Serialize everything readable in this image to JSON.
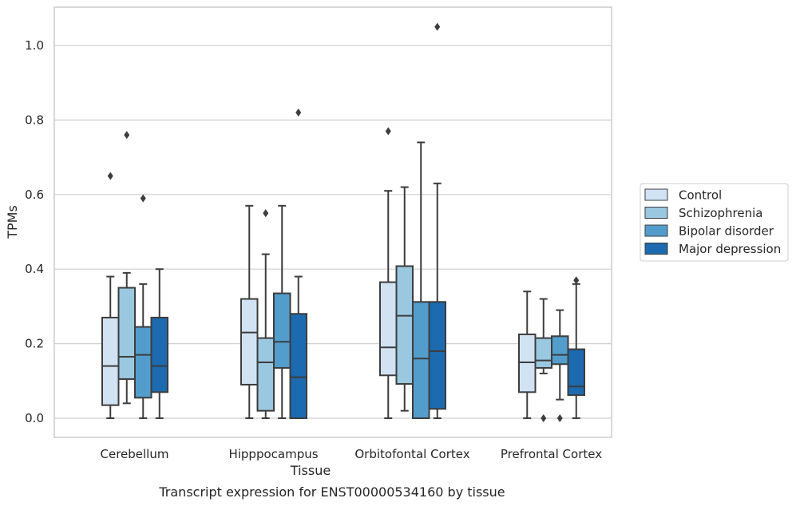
{
  "chart_data": {
    "type": "box",
    "title": "Transcript expression for ENST00000534160 by tissue",
    "xlabel": "Tissue",
    "ylabel": "TPMs",
    "ylim": [
      -0.05,
      1.1
    ],
    "yticks": [
      "0.0",
      "0.2",
      "0.4",
      "0.6",
      "0.8",
      "1.0"
    ],
    "grid": true,
    "legend_position": "right",
    "categories": [
      "Cerebellum",
      "Hipppocampus",
      "Orbitofontal Cortex",
      "Prefrontal Cortex"
    ],
    "series": [
      {
        "name": "Control",
        "color": "#d1e2f3",
        "boxes": [
          {
            "min": 0.0,
            "q1": 0.035,
            "median": 0.14,
            "q3": 0.27,
            "max": 0.38,
            "outliers": [
              0.65
            ]
          },
          {
            "min": 0.0,
            "q1": 0.09,
            "median": 0.23,
            "q3": 0.32,
            "max": 0.57,
            "outliers": []
          },
          {
            "min": 0.0,
            "q1": 0.115,
            "median": 0.19,
            "q3": 0.365,
            "max": 0.61,
            "outliers": [
              0.77
            ]
          },
          {
            "min": 0.0,
            "q1": 0.07,
            "median": 0.15,
            "q3": 0.225,
            "max": 0.34,
            "outliers": []
          }
        ]
      },
      {
        "name": "Schizophrenia",
        "color": "#9ac8e0",
        "boxes": [
          {
            "min": 0.04,
            "q1": 0.105,
            "median": 0.165,
            "q3": 0.35,
            "max": 0.39,
            "outliers": [
              0.76
            ]
          },
          {
            "min": 0.0,
            "q1": 0.02,
            "median": 0.15,
            "q3": 0.215,
            "max": 0.44,
            "outliers": [
              0.55
            ]
          },
          {
            "min": 0.02,
            "q1": 0.092,
            "median": 0.275,
            "q3": 0.408,
            "max": 0.62,
            "outliers": []
          },
          {
            "min": 0.12,
            "q1": 0.135,
            "median": 0.155,
            "q3": 0.215,
            "max": 0.32,
            "outliers": [
              0.0
            ]
          }
        ]
      },
      {
        "name": "Bipolar disorder",
        "color": "#529dcc",
        "boxes": [
          {
            "min": 0.0,
            "q1": 0.055,
            "median": 0.17,
            "q3": 0.245,
            "max": 0.36,
            "outliers": [
              0.59
            ]
          },
          {
            "min": 0.0,
            "q1": 0.135,
            "median": 0.205,
            "q3": 0.335,
            "max": 0.57,
            "outliers": []
          },
          {
            "min": 0.0,
            "q1": 0.0,
            "median": 0.16,
            "q3": 0.312,
            "max": 0.74,
            "outliers": []
          },
          {
            "min": 0.05,
            "q1": 0.145,
            "median": 0.17,
            "q3": 0.22,
            "max": 0.29,
            "outliers": [
              0.0
            ]
          }
        ]
      },
      {
        "name": "Major depression",
        "color": "#1c6aaf",
        "boxes": [
          {
            "min": 0.0,
            "q1": 0.07,
            "median": 0.14,
            "q3": 0.27,
            "max": 0.4,
            "outliers": []
          },
          {
            "min": 0.0,
            "q1": 0.0,
            "median": 0.11,
            "q3": 0.28,
            "max": 0.38,
            "outliers": [
              0.82
            ]
          },
          {
            "min": 0.0,
            "q1": 0.025,
            "median": 0.18,
            "q3": 0.312,
            "max": 0.63,
            "outliers": [
              1.05
            ]
          },
          {
            "min": 0.0,
            "q1": 0.062,
            "median": 0.085,
            "q3": 0.185,
            "max": 0.36,
            "outliers": [
              0.37
            ]
          }
        ]
      }
    ]
  }
}
